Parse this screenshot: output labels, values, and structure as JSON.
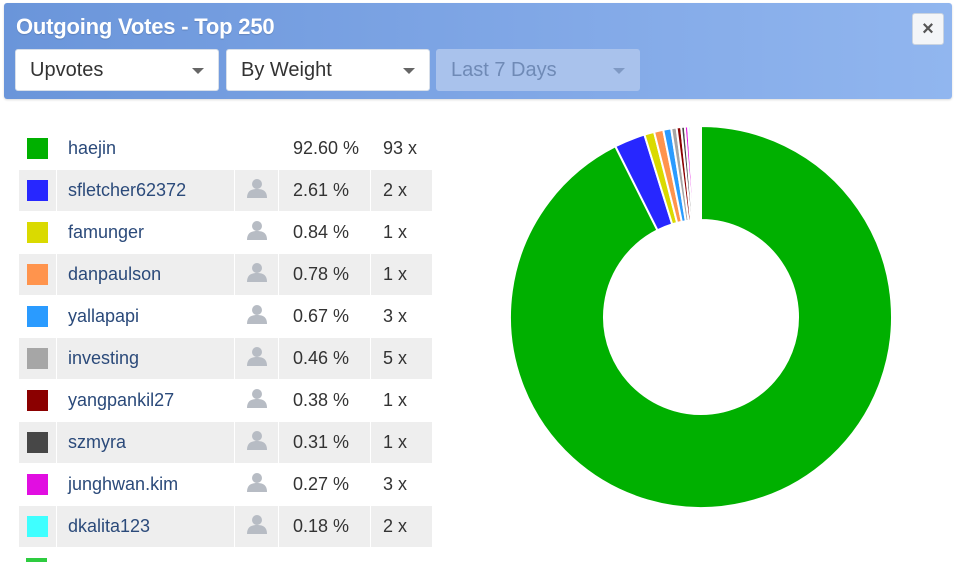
{
  "header": {
    "title": "Outgoing Votes - Top 250",
    "close_label": "×",
    "dropdown_type": "Upvotes",
    "dropdown_sort": "By Weight",
    "dropdown_period": "Last 7 Days"
  },
  "votes": [
    {
      "name": "haejin",
      "pct": "92.60 %",
      "count": "93 x",
      "color": "#00b000",
      "weight": 92.6,
      "profile_icon": false
    },
    {
      "name": "sfletcher62372",
      "pct": "2.61 %",
      "count": "2 x",
      "color": "#2727ff",
      "weight": 2.61,
      "profile_icon": true
    },
    {
      "name": "famunger",
      "pct": "0.84 %",
      "count": "1 x",
      "color": "#dada00",
      "weight": 0.84,
      "profile_icon": true
    },
    {
      "name": "danpaulson",
      "pct": "0.78 %",
      "count": "1 x",
      "color": "#ff944d",
      "weight": 0.78,
      "profile_icon": true
    },
    {
      "name": "yallapapi",
      "pct": "0.67 %",
      "count": "3 x",
      "color": "#2a9bff",
      "weight": 0.67,
      "profile_icon": true
    },
    {
      "name": "investing",
      "pct": "0.46 %",
      "count": "5 x",
      "color": "#a6a6a6",
      "weight": 0.46,
      "profile_icon": true
    },
    {
      "name": "yangpankil27",
      "pct": "0.38 %",
      "count": "1 x",
      "color": "#8b0000",
      "weight": 0.38,
      "profile_icon": true
    },
    {
      "name": "szmyra",
      "pct": "0.31 %",
      "count": "1 x",
      "color": "#474747",
      "weight": 0.31,
      "profile_icon": true
    },
    {
      "name": "junghwan.kim",
      "pct": "0.27 %",
      "count": "3 x",
      "color": "#e10ee1",
      "weight": 0.27,
      "profile_icon": true
    },
    {
      "name": "dkalita123",
      "pct": "0.18 %",
      "count": "2 x",
      "color": "#3fffff",
      "weight": 0.18,
      "profile_icon": true
    }
  ],
  "chart_data": {
    "type": "pie",
    "labels": [
      "haejin",
      "sfletcher62372",
      "famunger",
      "danpaulson",
      "yallapapi",
      "investing",
      "yangpankil27",
      "szmyra",
      "junghwan.kim",
      "dkalita123"
    ],
    "values": [
      92.6,
      2.61,
      0.84,
      0.78,
      0.67,
      0.46,
      0.38,
      0.31,
      0.27,
      0.18
    ],
    "colors": [
      "#00b000",
      "#2727ff",
      "#dada00",
      "#ff944d",
      "#2a9bff",
      "#a6a6a6",
      "#8b0000",
      "#474747",
      "#e10ee1",
      "#3fffff"
    ],
    "donut": true
  }
}
